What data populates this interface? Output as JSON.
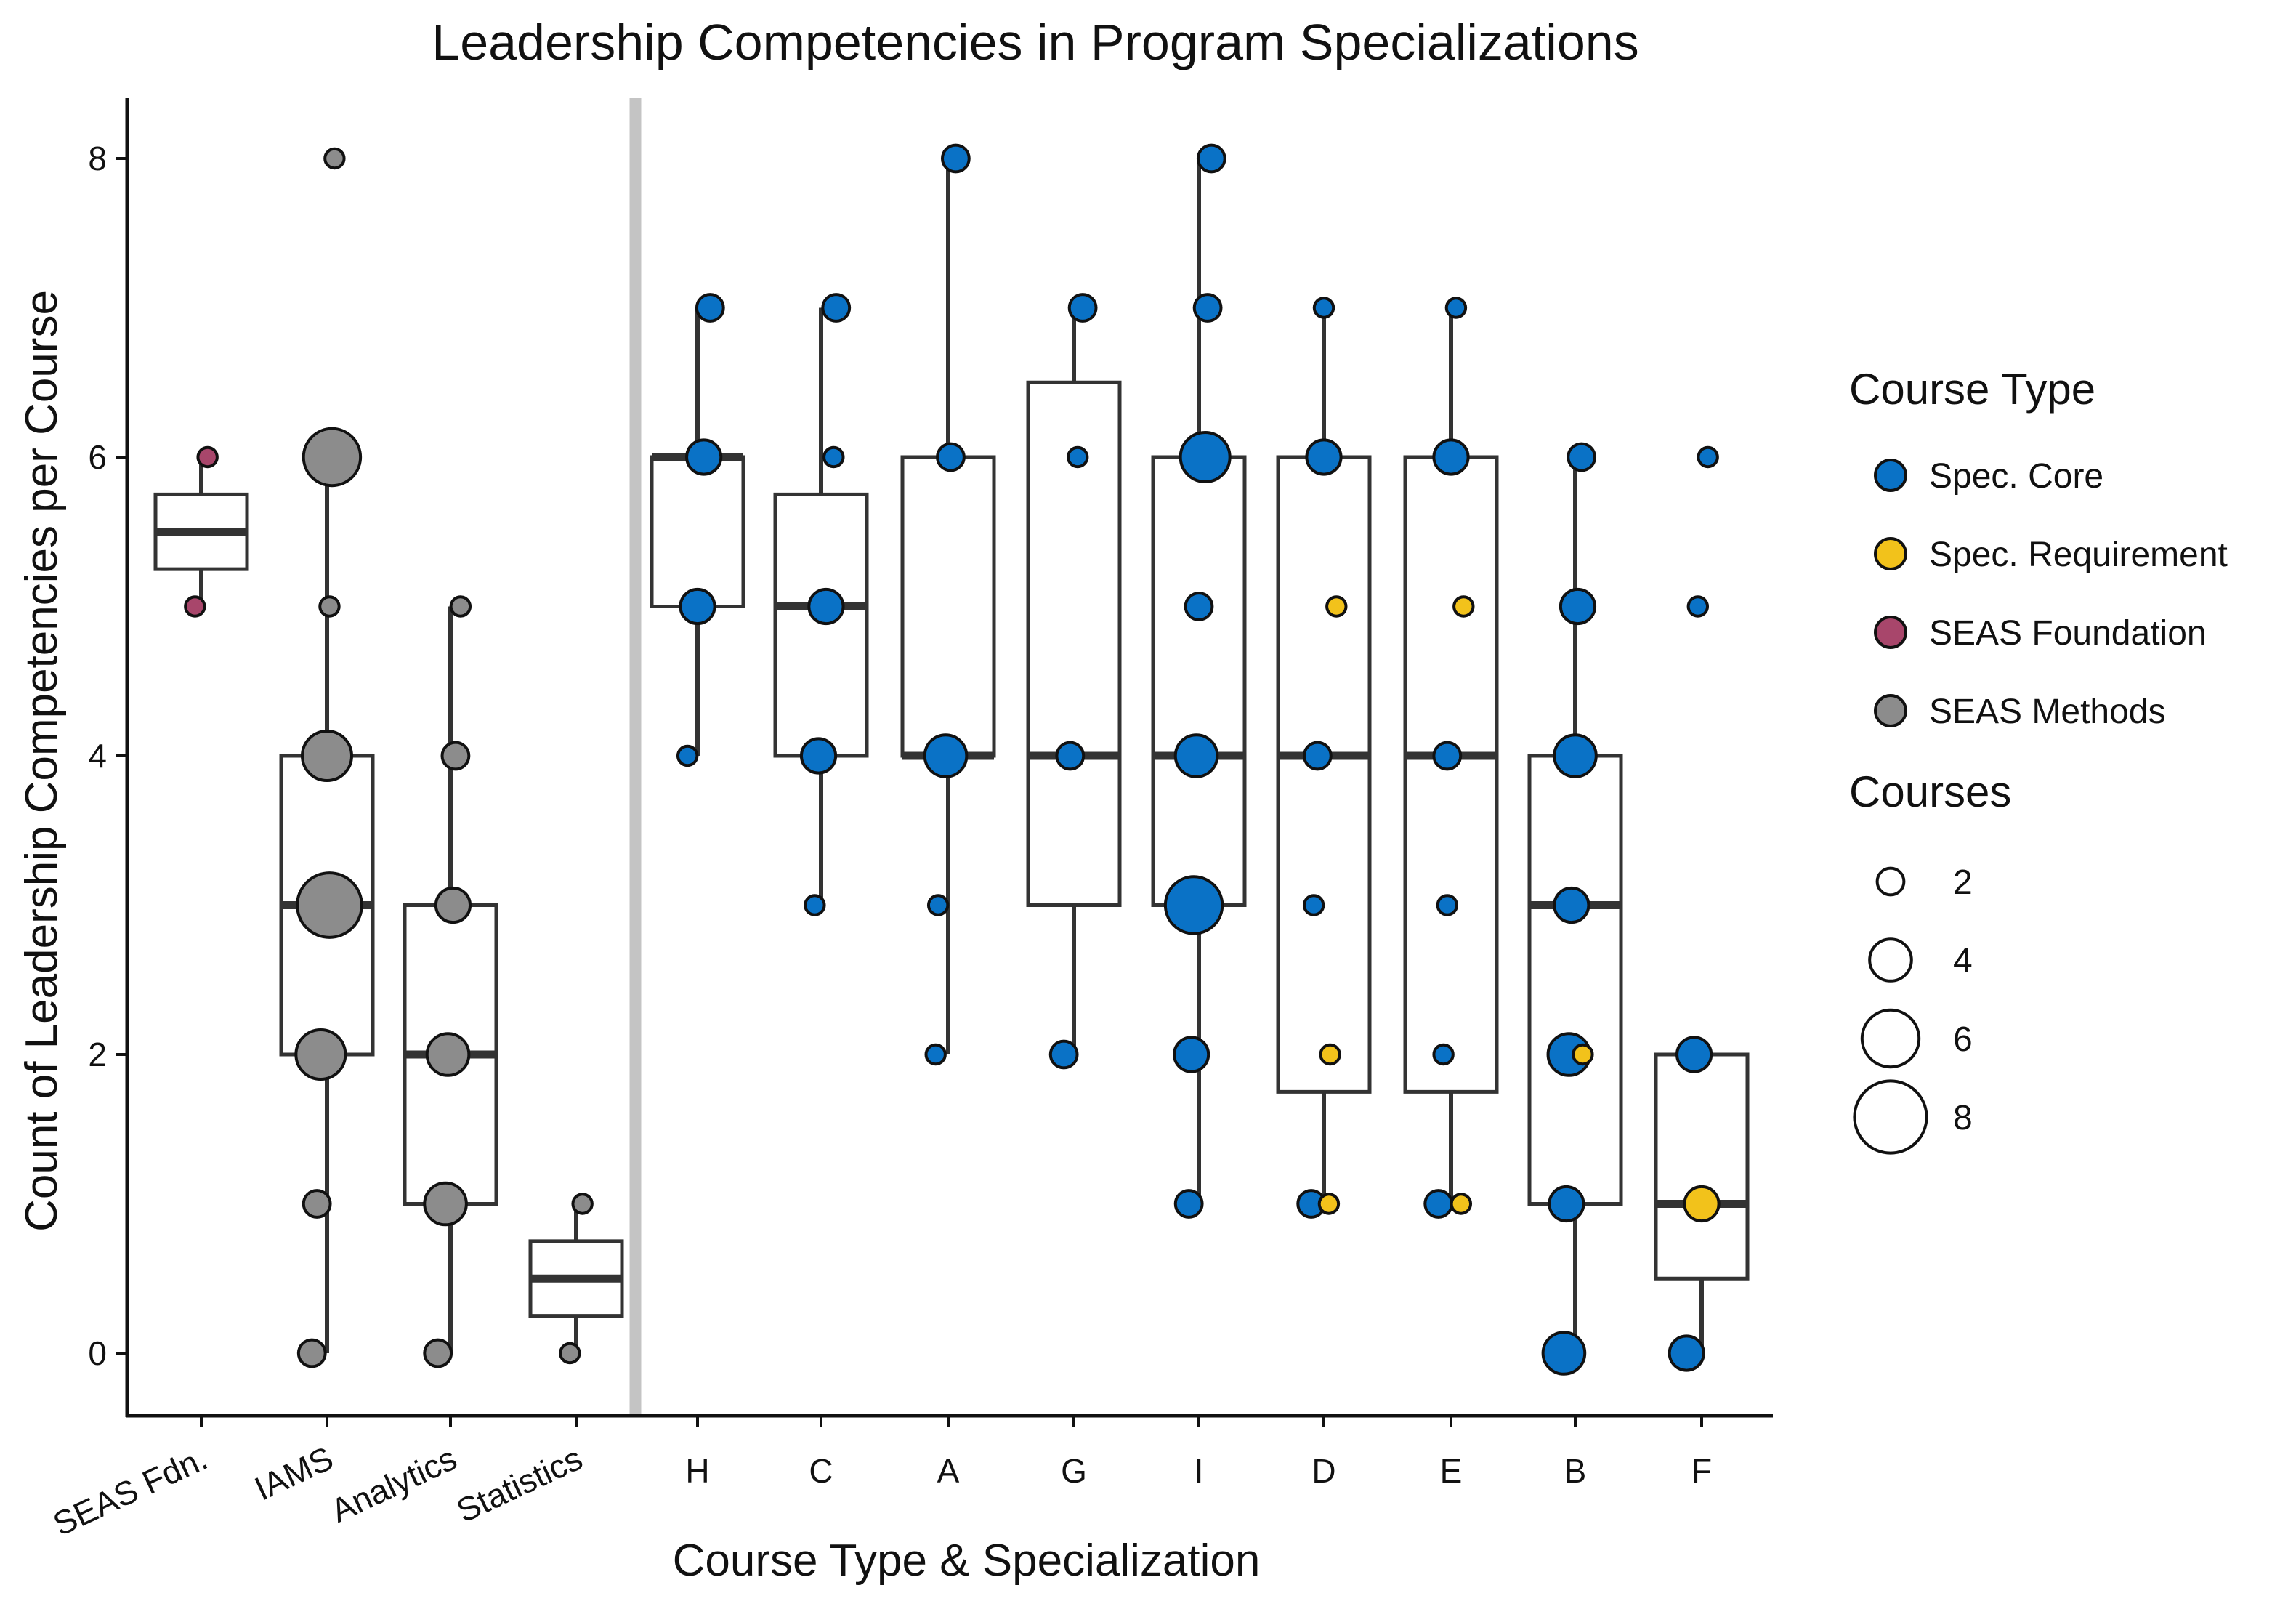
{
  "chart_data": {
    "type": "boxplot",
    "title": "Leadership Competencies in Program Specializations",
    "xlabel": "Course Type & Specialization",
    "ylabel": "Count of Leadership Competencies per Course",
    "ylim": [
      -0.4,
      8.4
    ],
    "yticks": [
      0,
      2,
      4,
      6,
      8
    ],
    "categories": [
      "SEAS Fdn.",
      "IAMS",
      "Analytics",
      "Statistics",
      "H",
      "C",
      "A",
      "G",
      "I",
      "D",
      "E",
      "B",
      "F"
    ],
    "separator_after": "Statistics",
    "colors": {
      "Spec. Core": "#0a72c6",
      "Spec. Requirement": "#f2c21b",
      "SEAS Foundation": "#a8466b",
      "SEAS Methods": "#8c8c8c",
      "box_outline": "#333333",
      "separator": "#c4c4c4"
    },
    "boxes": [
      {
        "category": "SEAS Fdn.",
        "whisker_low": 5,
        "q1": 5.25,
        "median": 5.5,
        "q3": 5.75,
        "whisker_high": 6
      },
      {
        "category": "IAMS",
        "whisker_low": 0,
        "q1": 2,
        "median": 3,
        "q3": 4,
        "whisker_high": 6
      },
      {
        "category": "Analytics",
        "whisker_low": 0,
        "q1": 1,
        "median": 2,
        "q3": 3,
        "whisker_high": 5
      },
      {
        "category": "Statistics",
        "whisker_low": 0,
        "q1": 0.25,
        "median": 0.5,
        "q3": 0.75,
        "whisker_high": 1
      },
      {
        "category": "H",
        "whisker_low": 4,
        "q1": 5,
        "median": 6,
        "q3": 6,
        "whisker_high": 7
      },
      {
        "category": "C",
        "whisker_low": 3,
        "q1": 4,
        "median": 5,
        "q3": 5.75,
        "whisker_high": 7
      },
      {
        "category": "A",
        "whisker_low": 2,
        "q1": 4,
        "median": 4,
        "q3": 6,
        "whisker_high": 8
      },
      {
        "category": "G",
        "whisker_low": 2,
        "q1": 3,
        "median": 4,
        "q3": 6.5,
        "whisker_high": 7
      },
      {
        "category": "I",
        "whisker_low": 1,
        "q1": 3,
        "median": 4,
        "q3": 6,
        "whisker_high": 8
      },
      {
        "category": "D",
        "whisker_low": 1,
        "q1": 1.75,
        "median": 4,
        "q3": 6,
        "whisker_high": 7
      },
      {
        "category": "E",
        "whisker_low": 1,
        "q1": 1.75,
        "median": 4,
        "q3": 6,
        "whisker_high": 7
      },
      {
        "category": "B",
        "whisker_low": 0,
        "q1": 1,
        "median": 3,
        "q3": 4,
        "whisker_high": 6
      },
      {
        "category": "F",
        "whisker_low": 0,
        "q1": 0.5,
        "median": 1,
        "q3": 2,
        "whisker_high": 2
      }
    ],
    "points": [
      {
        "category": "SEAS Fdn.",
        "y": 6,
        "type": "SEAS Foundation",
        "courses": 1,
        "jitter": 0.05
      },
      {
        "category": "SEAS Fdn.",
        "y": 5,
        "type": "SEAS Foundation",
        "courses": 1,
        "jitter": -0.05
      },
      {
        "category": "IAMS",
        "y": 8,
        "type": "SEAS Methods",
        "courses": 1,
        "jitter": 0.06
      },
      {
        "category": "IAMS",
        "y": 6,
        "type": "SEAS Methods",
        "courses": 6,
        "jitter": 0.04
      },
      {
        "category": "IAMS",
        "y": 5,
        "type": "SEAS Methods",
        "courses": 1,
        "jitter": 0.02
      },
      {
        "category": "IAMS",
        "y": 4,
        "type": "SEAS Methods",
        "courses": 5,
        "jitter": 0.0
      },
      {
        "category": "IAMS",
        "y": 3,
        "type": "SEAS Methods",
        "courses": 7,
        "jitter": 0.02
      },
      {
        "category": "IAMS",
        "y": 2,
        "type": "SEAS Methods",
        "courses": 5,
        "jitter": -0.05
      },
      {
        "category": "IAMS",
        "y": 1,
        "type": "SEAS Methods",
        "courses": 2,
        "jitter": -0.08
      },
      {
        "category": "IAMS",
        "y": 0,
        "type": "SEAS Methods",
        "courses": 2,
        "jitter": -0.12
      },
      {
        "category": "Analytics",
        "y": 5,
        "type": "SEAS Methods",
        "courses": 1,
        "jitter": 0.08
      },
      {
        "category": "Analytics",
        "y": 4,
        "type": "SEAS Methods",
        "courses": 2,
        "jitter": 0.04
      },
      {
        "category": "Analytics",
        "y": 3,
        "type": "SEAS Methods",
        "courses": 3,
        "jitter": 0.02
      },
      {
        "category": "Analytics",
        "y": 2,
        "type": "SEAS Methods",
        "courses": 4,
        "jitter": -0.02
      },
      {
        "category": "Analytics",
        "y": 1,
        "type": "SEAS Methods",
        "courses": 4,
        "jitter": -0.04
      },
      {
        "category": "Analytics",
        "y": 0,
        "type": "SEAS Methods",
        "courses": 2,
        "jitter": -0.1
      },
      {
        "category": "Statistics",
        "y": 1,
        "type": "SEAS Methods",
        "courses": 1,
        "jitter": 0.05
      },
      {
        "category": "Statistics",
        "y": 0,
        "type": "SEAS Methods",
        "courses": 1,
        "jitter": -0.05
      },
      {
        "category": "H",
        "y": 7,
        "type": "Spec. Core",
        "courses": 2,
        "jitter": 0.1
      },
      {
        "category": "H",
        "y": 6,
        "type": "Spec. Core",
        "courses": 3,
        "jitter": 0.05
      },
      {
        "category": "H",
        "y": 5,
        "type": "Spec. Core",
        "courses": 3,
        "jitter": 0.0
      },
      {
        "category": "H",
        "y": 4,
        "type": "Spec. Core",
        "courses": 1,
        "jitter": -0.08
      },
      {
        "category": "C",
        "y": 7,
        "type": "Spec. Core",
        "courses": 2,
        "jitter": 0.12
      },
      {
        "category": "C",
        "y": 6,
        "type": "Spec. Core",
        "courses": 1,
        "jitter": 0.1
      },
      {
        "category": "C",
        "y": 5,
        "type": "Spec. Core",
        "courses": 3,
        "jitter": 0.04
      },
      {
        "category": "C",
        "y": 4,
        "type": "Spec. Core",
        "courses": 3,
        "jitter": -0.02
      },
      {
        "category": "C",
        "y": 3,
        "type": "Spec. Core",
        "courses": 1,
        "jitter": -0.05
      },
      {
        "category": "A",
        "y": 8,
        "type": "Spec. Core",
        "courses": 2,
        "jitter": 0.06
      },
      {
        "category": "A",
        "y": 6,
        "type": "Spec. Core",
        "courses": 2,
        "jitter": 0.02
      },
      {
        "category": "A",
        "y": 4,
        "type": "Spec. Core",
        "courses": 4,
        "jitter": -0.02
      },
      {
        "category": "A",
        "y": 3,
        "type": "Spec. Core",
        "courses": 1,
        "jitter": -0.08
      },
      {
        "category": "A",
        "y": 2,
        "type": "Spec. Core",
        "courses": 1,
        "jitter": -0.1
      },
      {
        "category": "G",
        "y": 7,
        "type": "Spec. Core",
        "courses": 2,
        "jitter": 0.07
      },
      {
        "category": "G",
        "y": 6,
        "type": "Spec. Core",
        "courses": 1,
        "jitter": 0.03
      },
      {
        "category": "G",
        "y": 4,
        "type": "Spec. Core",
        "courses": 2,
        "jitter": -0.03
      },
      {
        "category": "G",
        "y": 2,
        "type": "Spec. Core",
        "courses": 2,
        "jitter": -0.08
      },
      {
        "category": "I",
        "y": 8,
        "type": "Spec. Core",
        "courses": 2,
        "jitter": 0.1
      },
      {
        "category": "I",
        "y": 7,
        "type": "Spec. Core",
        "courses": 2,
        "jitter": 0.07
      },
      {
        "category": "I",
        "y": 6,
        "type": "Spec. Core",
        "courses": 5,
        "jitter": 0.05
      },
      {
        "category": "I",
        "y": 5,
        "type": "Spec. Core",
        "courses": 2,
        "jitter": 0.0
      },
      {
        "category": "I",
        "y": 4,
        "type": "Spec. Core",
        "courses": 4,
        "jitter": -0.02
      },
      {
        "category": "I",
        "y": 3,
        "type": "Spec. Core",
        "courses": 6,
        "jitter": -0.04
      },
      {
        "category": "I",
        "y": 2,
        "type": "Spec. Core",
        "courses": 3,
        "jitter": -0.06
      },
      {
        "category": "I",
        "y": 1,
        "type": "Spec. Core",
        "courses": 2,
        "jitter": -0.08
      },
      {
        "category": "D",
        "y": 7,
        "type": "Spec. Core",
        "courses": 1,
        "jitter": 0.0
      },
      {
        "category": "D",
        "y": 6,
        "type": "Spec. Core",
        "courses": 3,
        "jitter": 0.0
      },
      {
        "category": "D",
        "y": 5,
        "type": "Spec. Requirement",
        "courses": 1,
        "jitter": 0.1
      },
      {
        "category": "D",
        "y": 4,
        "type": "Spec. Core",
        "courses": 2,
        "jitter": -0.05
      },
      {
        "category": "D",
        "y": 3,
        "type": "Spec. Core",
        "courses": 1,
        "jitter": -0.08
      },
      {
        "category": "D",
        "y": 2,
        "type": "Spec. Requirement",
        "courses": 1,
        "jitter": 0.05
      },
      {
        "category": "D",
        "y": 1,
        "type": "Spec. Core",
        "courses": 2,
        "jitter": -0.1
      },
      {
        "category": "D",
        "y": 1,
        "type": "Spec. Requirement",
        "courses": 1,
        "jitter": 0.04
      },
      {
        "category": "E",
        "y": 7,
        "type": "Spec. Core",
        "courses": 1,
        "jitter": 0.04
      },
      {
        "category": "E",
        "y": 6,
        "type": "Spec. Core",
        "courses": 3,
        "jitter": 0.0
      },
      {
        "category": "E",
        "y": 5,
        "type": "Spec. Requirement",
        "courses": 1,
        "jitter": 0.1
      },
      {
        "category": "E",
        "y": 4,
        "type": "Spec. Core",
        "courses": 2,
        "jitter": -0.03
      },
      {
        "category": "E",
        "y": 3,
        "type": "Spec. Core",
        "courses": 1,
        "jitter": -0.03
      },
      {
        "category": "E",
        "y": 2,
        "type": "Spec. Core",
        "courses": 1,
        "jitter": -0.06
      },
      {
        "category": "E",
        "y": 1,
        "type": "Spec. Core",
        "courses": 2,
        "jitter": -0.1
      },
      {
        "category": "E",
        "y": 1,
        "type": "Spec. Requirement",
        "courses": 1,
        "jitter": 0.08
      },
      {
        "category": "B",
        "y": 6,
        "type": "Spec. Core",
        "courses": 2,
        "jitter": 0.05
      },
      {
        "category": "B",
        "y": 5,
        "type": "Spec. Core",
        "courses": 3,
        "jitter": 0.02
      },
      {
        "category": "B",
        "y": 4,
        "type": "Spec. Core",
        "courses": 4,
        "jitter": 0.0
      },
      {
        "category": "B",
        "y": 3,
        "type": "Spec. Core",
        "courses": 3,
        "jitter": -0.03
      },
      {
        "category": "B",
        "y": 2,
        "type": "Spec. Core",
        "courses": 4,
        "jitter": -0.05
      },
      {
        "category": "B",
        "y": 2,
        "type": "Spec. Requirement",
        "courses": 1,
        "jitter": 0.06
      },
      {
        "category": "B",
        "y": 1,
        "type": "Spec. Core",
        "courses": 3,
        "jitter": -0.07
      },
      {
        "category": "B",
        "y": 0,
        "type": "Spec. Core",
        "courses": 4,
        "jitter": -0.09
      },
      {
        "category": "F",
        "y": 6,
        "type": "Spec. Core",
        "courses": 1,
        "jitter": 0.05
      },
      {
        "category": "F",
        "y": 5,
        "type": "Spec. Core",
        "courses": 1,
        "jitter": -0.03
      },
      {
        "category": "F",
        "y": 2,
        "type": "Spec. Core",
        "courses": 3,
        "jitter": -0.06
      },
      {
        "category": "F",
        "y": 1,
        "type": "Spec. Requirement",
        "courses": 3,
        "jitter": 0.0
      },
      {
        "category": "F",
        "y": 0,
        "type": "Spec. Core",
        "courses": 3,
        "jitter": -0.12
      }
    ],
    "legend": {
      "placement": "right",
      "color_title": "Course Type",
      "color_entries": [
        "Spec. Core",
        "Spec. Requirement",
        "SEAS Foundation",
        "SEAS Methods"
      ],
      "size_title": "Courses",
      "size_entries": [
        2,
        4,
        6,
        8
      ]
    }
  }
}
